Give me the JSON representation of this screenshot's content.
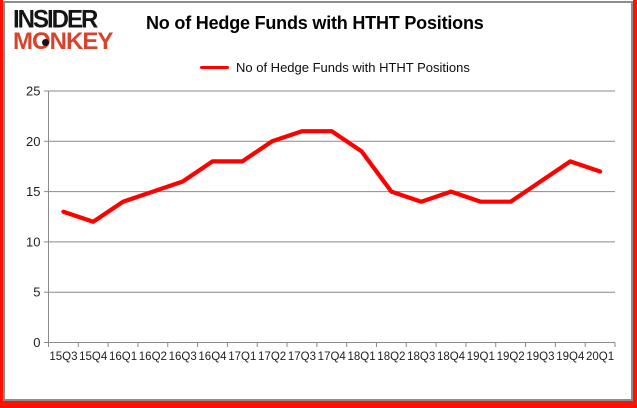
{
  "logo": {
    "line1": "INSIDER",
    "line2": "MONKEY"
  },
  "header": {
    "title": "No of Hedge Funds with HTHT Positions"
  },
  "legend": {
    "label": "No of Hedge Funds with HTHT Positions"
  },
  "colors": {
    "series_red": "#ff0000",
    "logo_red": "#d8432c",
    "frame_red": "#fe1100",
    "chart_border_gray": "#8d8d8d",
    "gridline_gray": "#8a8a8a",
    "axis_text": "#1f1f1f"
  },
  "chart_data": {
    "type": "line",
    "title": "No of Hedge Funds with HTHT Positions",
    "categories": [
      "15Q3",
      "15Q4",
      "16Q1",
      "16Q2",
      "16Q3",
      "16Q4",
      "17Q1",
      "17Q2",
      "17Q3",
      "17Q4",
      "18Q1",
      "18Q2",
      "18Q3",
      "18Q4",
      "19Q1",
      "19Q2",
      "19Q3",
      "19Q4",
      "20Q1"
    ],
    "series": [
      {
        "name": "No of Hedge Funds with HTHT Positions",
        "color": "#ff0000",
        "values": [
          13,
          12,
          14,
          15,
          16,
          18,
          18,
          20,
          21,
          21,
          19,
          15,
          14,
          15,
          14,
          14,
          16,
          18,
          17
        ]
      }
    ],
    "ylim": [
      0,
      25
    ],
    "yticks": [
      0,
      5,
      10,
      15,
      20,
      25
    ],
    "grid": true,
    "legend_position": "top-center",
    "xlabel": "",
    "ylabel": ""
  }
}
